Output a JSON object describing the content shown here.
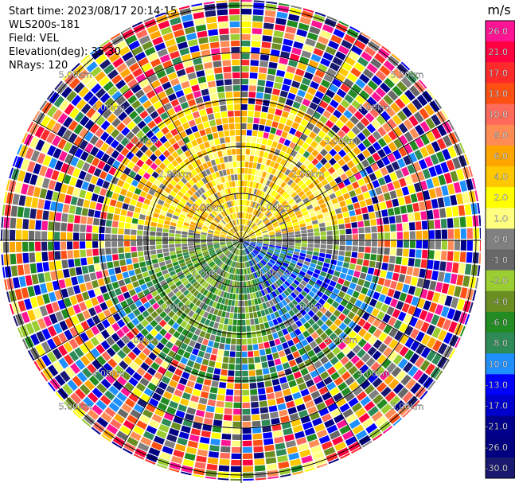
{
  "header": {
    "start_time": "Start time: 2023/08/17 20:14:15",
    "instrument": "WLS200s-181",
    "field": "Field: VEL",
    "elevation": "Elevation(deg): 35.30",
    "nrays": "NRays: 120"
  },
  "chart_data": {
    "type": "ppi-scan",
    "field": "VEL",
    "units": "m/s",
    "range_ring_labels": [
      "1.00km",
      "2.00km",
      "3.00km",
      "4.00km",
      "5.00km"
    ],
    "colorbar": {
      "unit_label": "m/s",
      "ticks": [
        "26.0",
        "21.0",
        "17.0",
        "13.0",
        "10.0",
        "8.0",
        "6.0",
        "4.0",
        "2.0",
        "1.0",
        "0.0",
        "-1.0",
        "-2.0",
        "-4.0",
        "-6.0",
        "-8.0",
        "-10.0",
        "-13.0",
        "-17.0",
        "-21.0",
        "-26.0",
        "-30.0"
      ],
      "colors": [
        "#ff1493",
        "#ff0040",
        "#ff2a2a",
        "#ff5014",
        "#ff6a5a",
        "#ff8c55",
        "#ffa500",
        "#ffc800",
        "#ffff00",
        "#ffff80",
        "#808080",
        "#686868",
        "#9acd32",
        "#6b8e23",
        "#228b22",
        "#2e8b57",
        "#1e90ff",
        "#0000ff",
        "#0000cd",
        "#00008b",
        "#000080",
        "#191970"
      ]
    },
    "approx_pattern": "near-field: approaching (yellow/orange) north half, receding (green/blue) south half; far field noisy"
  }
}
